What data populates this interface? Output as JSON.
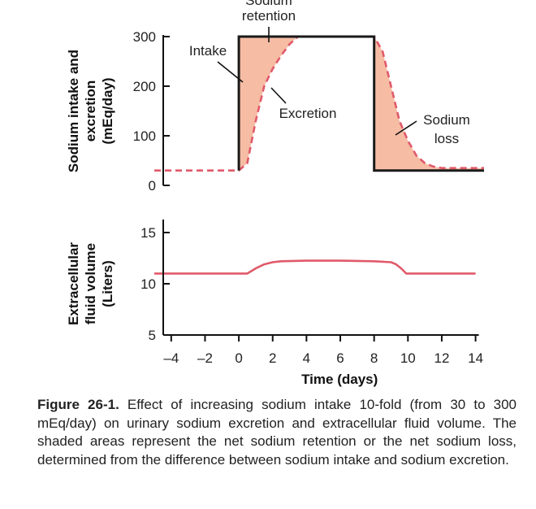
{
  "chart_data": [
    {
      "type": "line",
      "ylabel": "Sodium intake and excretion (mEq/day)",
      "ylabel_lines": [
        "Sodium intake and",
        "excretion",
        "(mEq/day)"
      ],
      "ylim": [
        0,
        300
      ],
      "yticks": [
        0,
        100,
        200,
        300
      ],
      "xlim": [
        -5,
        14.5
      ],
      "grid": false,
      "series": [
        {
          "name": "Intake",
          "color": "#1a1a1a",
          "style": "solid",
          "x": [
            0,
            0,
            8,
            8,
            14.5
          ],
          "y": [
            30,
            300,
            300,
            30,
            30
          ]
        },
        {
          "name": "Excretion",
          "color": "#e05a6a",
          "style": "dashed",
          "x": [
            -5,
            0,
            0.5,
            1,
            1.5,
            2,
            2.5,
            3,
            3.5,
            4,
            8,
            8.5,
            9,
            9.5,
            10,
            10.5,
            11,
            11.5,
            12,
            14.5
          ],
          "y": [
            30,
            30,
            45,
            130,
            200,
            235,
            262,
            285,
            300,
            300,
            300,
            270,
            200,
            130,
            90,
            60,
            45,
            38,
            35,
            35
          ]
        }
      ],
      "shaded_regions": [
        {
          "label": "Sodium retention",
          "color": "#f6bca4"
        },
        {
          "label": "Sodium loss",
          "color": "#f6bca4"
        }
      ],
      "annotations": [
        {
          "text": "Sodium retention",
          "lines": [
            "Sodium",
            "retention"
          ]
        },
        {
          "text": "Intake"
        },
        {
          "text": "Excretion"
        },
        {
          "text": "Sodium loss",
          "lines": [
            "Sodium",
            "loss"
          ]
        }
      ]
    },
    {
      "type": "line",
      "xlabel": "Time (days)",
      "ylabel": "Extracellular fluid volume (Liters)",
      "ylabel_lines": [
        "Extracellular",
        "fluid volume",
        "(Liters)"
      ],
      "ylim": [
        5,
        15
      ],
      "yticks": [
        5,
        10,
        15
      ],
      "xlim": [
        -5,
        14.5
      ],
      "xticks": [
        -4,
        -2,
        0,
        2,
        4,
        6,
        8,
        10,
        12,
        14
      ],
      "xtick_labels": [
        "–4",
        "–2",
        "0",
        "2",
        "4",
        "6",
        "8",
        "10",
        "12",
        "14"
      ],
      "grid": false,
      "series": [
        {
          "name": "Extracellular fluid volume",
          "color": "#e05a6a",
          "style": "solid",
          "x": [
            -5,
            0.5,
            1,
            1.5,
            2,
            2.5,
            4,
            6,
            8,
            9,
            9.3,
            9.6,
            9.9,
            14
          ],
          "y": [
            11,
            11,
            11.5,
            11.9,
            12.1,
            12.2,
            12.25,
            12.25,
            12.2,
            12.1,
            11.9,
            11.5,
            11,
            11
          ]
        }
      ]
    }
  ],
  "caption": {
    "label": "Figure 26-1.",
    "text": " Effect of increasing sodium intake 10-fold (from 30 to 300 mEq/day) on urinary sodium excretion and extracellular fluid volume. The shaded areas represent the net sodium retention or the net sodium loss, determined from the difference between sodium intake and sodium excretion."
  }
}
